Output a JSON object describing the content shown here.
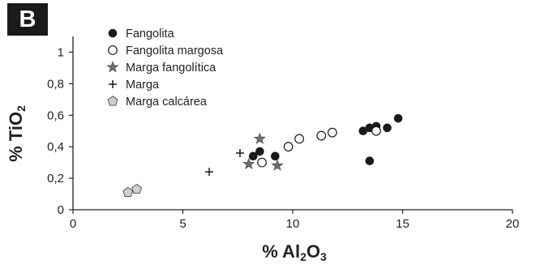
{
  "panel_label": "B",
  "chart_data": {
    "type": "scatter",
    "xlabel": {
      "prefix": "% Al",
      "sub1": "2",
      "mid": "O",
      "sub2": "3"
    },
    "ylabel": {
      "prefix": "% TiO",
      "sub1": "2"
    },
    "xlim": [
      0,
      20
    ],
    "ylim": [
      0,
      1.1
    ],
    "xticks": [
      0,
      5,
      10,
      15,
      20
    ],
    "xtick_labels": [
      "0",
      "5",
      "10",
      "15",
      "20"
    ],
    "yticks": [
      0,
      0.2,
      0.4,
      0.6,
      0.8,
      1
    ],
    "ytick_labels": [
      "0",
      "0,2",
      "0,4",
      "0,6",
      "0,8",
      "1"
    ],
    "grid": false,
    "legend_position": "top-left",
    "series": [
      {
        "name": "Fangolita",
        "marker": "filled-circle",
        "color": "#1a1a1a",
        "x": [
          8.2,
          8.5,
          9.2,
          13.2,
          13.5,
          13.8,
          14.3,
          14.8,
          13.5
        ],
        "y": [
          0.34,
          0.37,
          0.34,
          0.5,
          0.52,
          0.53,
          0.52,
          0.58,
          0.31
        ]
      },
      {
        "name": "Fangolita margosa",
        "marker": "open-circle",
        "color": "#1a1a1a",
        "x": [
          8.6,
          9.8,
          10.3,
          11.3,
          11.8,
          13.8
        ],
        "y": [
          0.3,
          0.4,
          0.45,
          0.47,
          0.49,
          0.5
        ]
      },
      {
        "name": "Marga fangolítica",
        "marker": "star",
        "color": "#6e6e6e",
        "x": [
          8.0,
          8.5,
          9.3
        ],
        "y": [
          0.29,
          0.45,
          0.28
        ]
      },
      {
        "name": "Marga",
        "marker": "plus",
        "color": "#1a1a1a",
        "x": [
          6.2,
          7.6
        ],
        "y": [
          0.24,
          0.36
        ]
      },
      {
        "name": "Marga calcárea",
        "marker": "pentagon",
        "color": "#cfcfcf",
        "x": [
          2.5,
          2.9
        ],
        "y": [
          0.11,
          0.13
        ]
      }
    ]
  }
}
